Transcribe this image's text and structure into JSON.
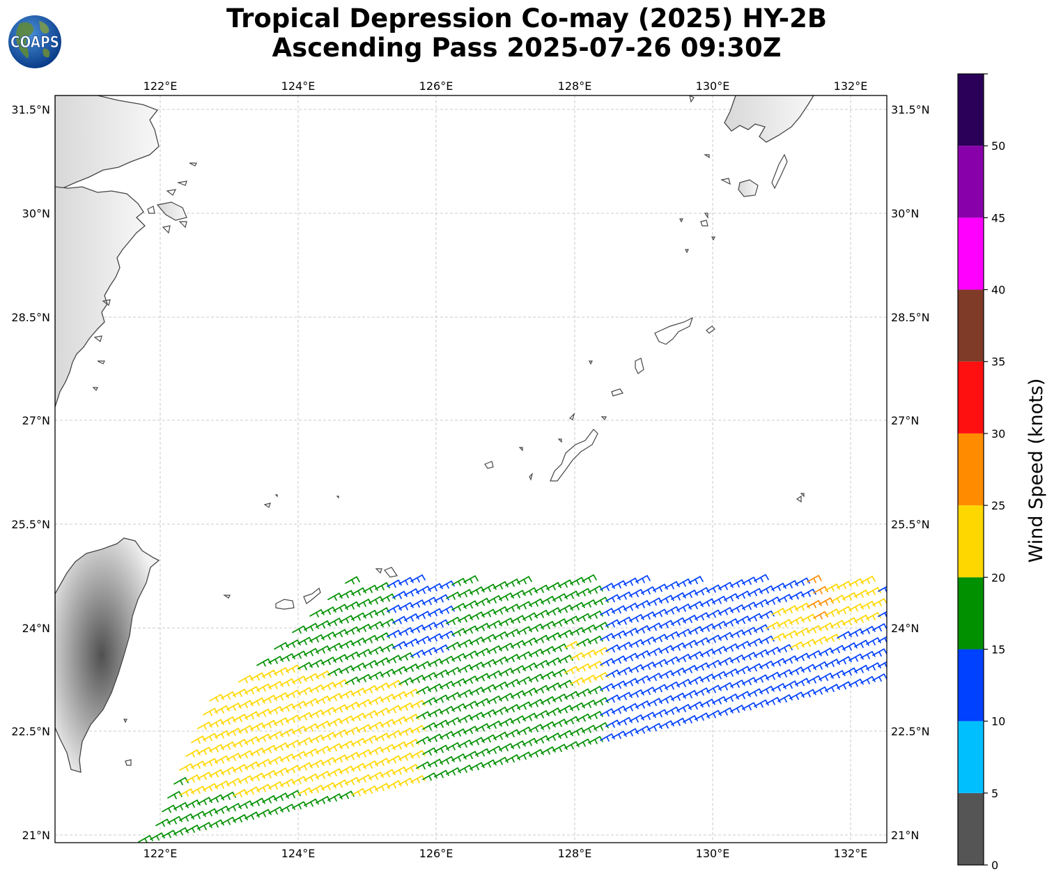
{
  "logo_text": "COAPS",
  "title_line1": "Tropical Depression Co-may (2025) HY-2B",
  "title_line2": "Ascending Pass 2025-07-26 09:30Z",
  "lon_labels": [
    "122°E",
    "124°E",
    "126°E",
    "128°E",
    "130°E",
    "132°E"
  ],
  "lat_labels": [
    "31.5°N",
    "30°N",
    "28.5°N",
    "27°N",
    "25.5°N",
    "24°N",
    "22.5°N",
    "21°N"
  ],
  "colorbar": {
    "label": "Wind Speed (knots)",
    "ticks": [
      "0",
      "5",
      "10",
      "15",
      "20",
      "25",
      "30",
      "35",
      "40",
      "45",
      "50"
    ],
    "bins": [
      {
        "min": 0,
        "max": 5,
        "color": "#555555"
      },
      {
        "min": 5,
        "max": 10,
        "color": "#00bfff"
      },
      {
        "min": 10,
        "max": 15,
        "color": "#0040ff"
      },
      {
        "min": 15,
        "max": 20,
        "color": "#009000"
      },
      {
        "min": 20,
        "max": 25,
        "color": "#ffd700"
      },
      {
        "min": 25,
        "max": 30,
        "color": "#ff8c00"
      },
      {
        "min": 30,
        "max": 35,
        "color": "#ff1010"
      },
      {
        "min": 35,
        "max": 40,
        "color": "#7f3a28"
      },
      {
        "min": 40,
        "max": 45,
        "color": "#ff00ff"
      },
      {
        "min": 45,
        "max": 50,
        "color": "#8800aa"
      },
      {
        "min": 50,
        "max": 55,
        "color": "#2b0059"
      }
    ]
  }
}
